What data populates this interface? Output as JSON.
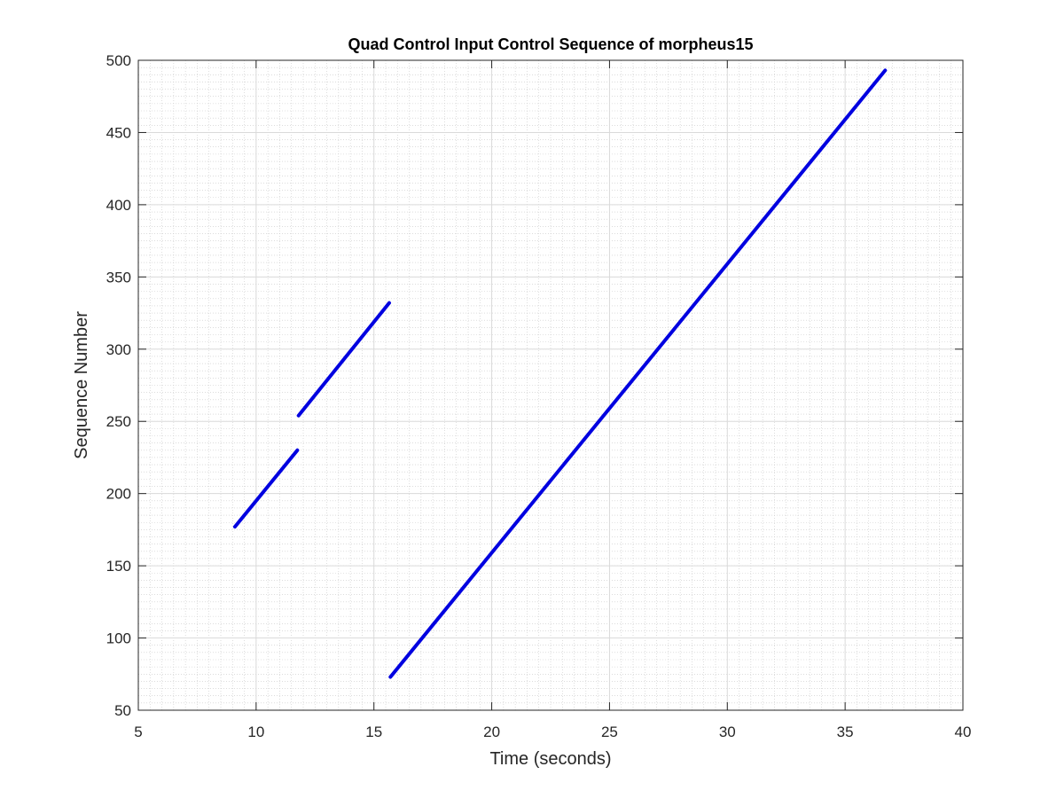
{
  "chart_data": {
    "type": "line",
    "title": "Quad Control Input Control Sequence of morpheus15",
    "xlabel": "Time (seconds)",
    "ylabel": "Sequence Number",
    "xlim": [
      5,
      40
    ],
    "ylim": [
      50,
      500
    ],
    "xticks": [
      5,
      10,
      15,
      20,
      25,
      30,
      35,
      40
    ],
    "yticks": [
      50,
      100,
      150,
      200,
      250,
      300,
      350,
      400,
      450,
      500
    ],
    "grid": "major and minor",
    "series": [
      {
        "color": "#0000e0",
        "segments": [
          [
            [
              9.1,
              177
            ],
            [
              11.75,
              230
            ]
          ],
          [
            [
              11.8,
              254
            ],
            [
              15.65,
              332
            ]
          ],
          [
            [
              15.7,
              73
            ],
            [
              36.7,
              493
            ]
          ]
        ]
      }
    ]
  }
}
